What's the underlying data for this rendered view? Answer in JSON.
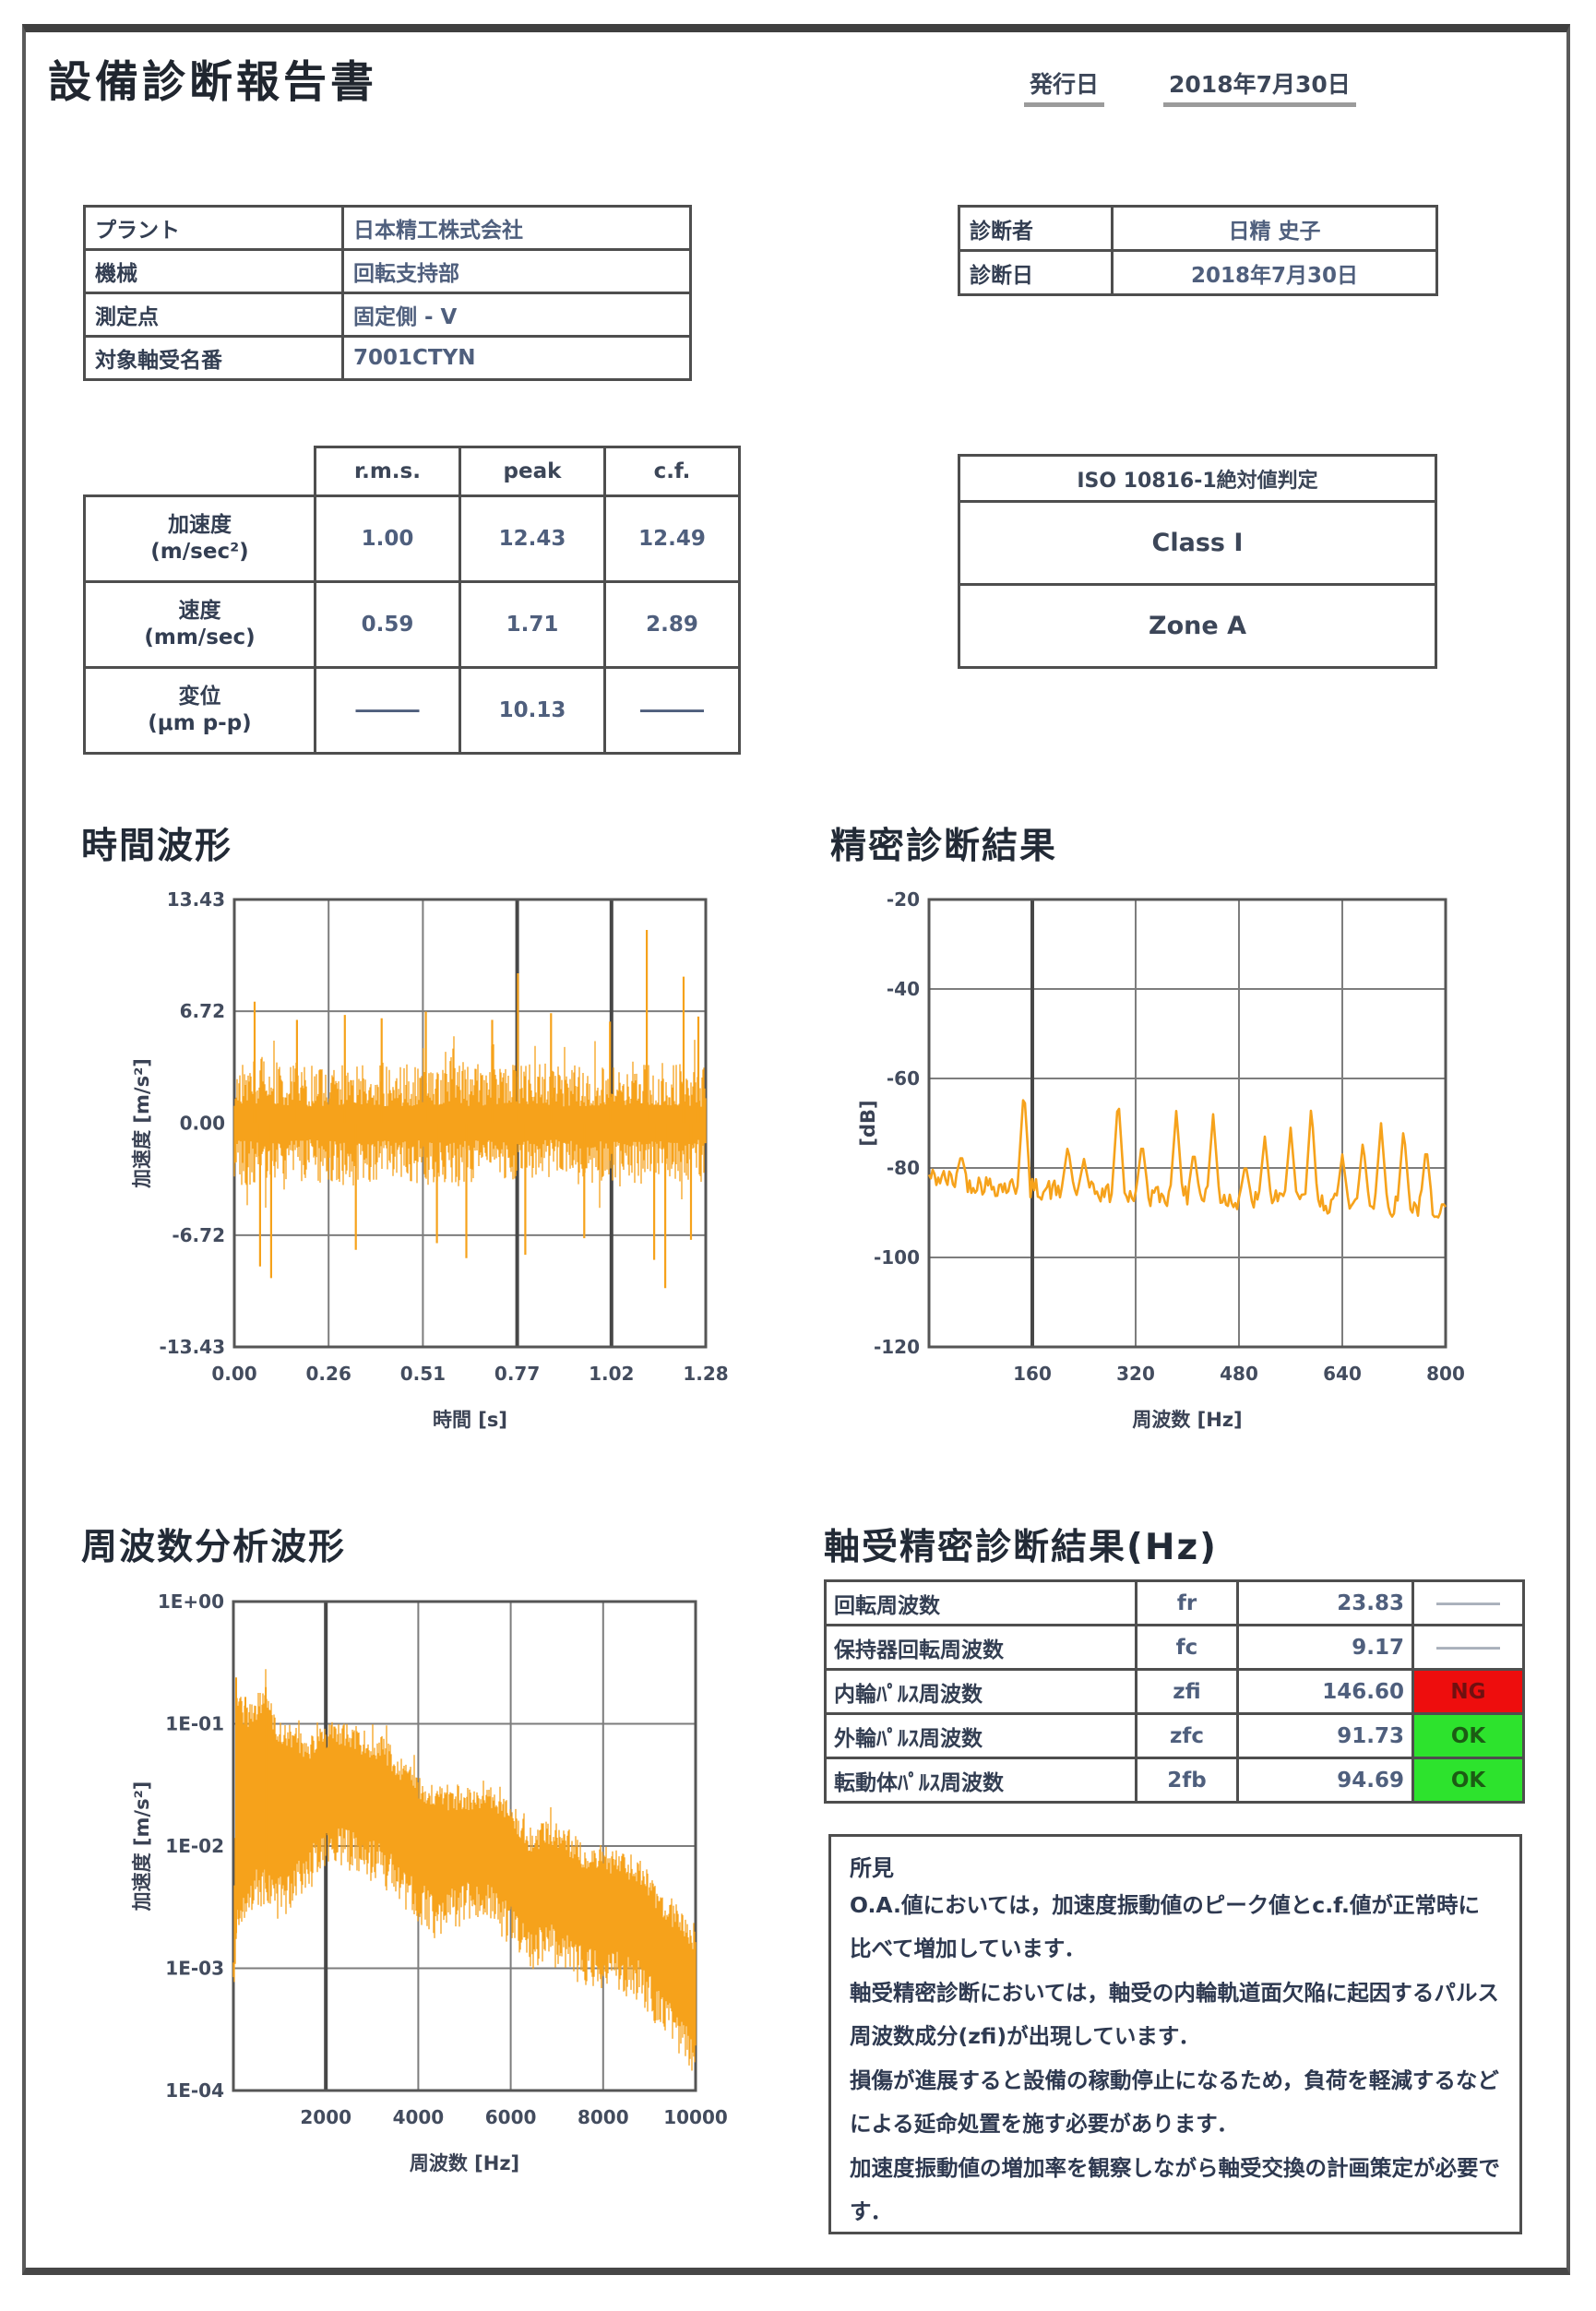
{
  "page": {
    "title": "設備診断報告書",
    "issue": {
      "label": "発行日",
      "date": "2018年7月30日"
    }
  },
  "info_left": {
    "rows": [
      {
        "label": "プラント",
        "value": "日本精工株式会社"
      },
      {
        "label": "機械",
        "value": "回転支持部"
      },
      {
        "label": "測定点",
        "value": "固定側 - V"
      },
      {
        "label": "対象軸受名番",
        "value": "7001CTYN"
      }
    ]
  },
  "info_right": {
    "rows": [
      {
        "label": "診断者",
        "value": "日精 史子"
      },
      {
        "label": "診断日",
        "value": "2018年7月30日"
      }
    ]
  },
  "measurement_table": {
    "headers": {
      "rms": "r.m.s.",
      "peak": "peak",
      "cf": "c.f."
    },
    "rows": [
      {
        "label": "加速度",
        "unit": "(m/sec²)",
        "rms": "1.00",
        "peak": "12.43",
        "cf": "12.49"
      },
      {
        "label": "速度",
        "unit": "(mm/sec)",
        "rms": "0.59",
        "peak": "1.71",
        "cf": "2.89"
      },
      {
        "label": "変位",
        "unit": "(μm p-p)",
        "rms": "―――",
        "peak": "10.13",
        "cf": "―――"
      }
    ]
  },
  "iso_table": {
    "header": "ISO 10816-1絶対値判定",
    "class_value": "Class Ⅰ",
    "zone_value": "Zone A"
  },
  "section_titles": {
    "time_waveform": "時間波形",
    "precision_result": "精密診断結果",
    "frequency_waveform": "周波数分析波形",
    "bearing_result": "軸受精密診断結果(Hz)"
  },
  "bearing_table": {
    "rows": [
      {
        "label": "回転周波数",
        "symbol": "fr",
        "value": "23.83",
        "status": "―――",
        "status_type": "none"
      },
      {
        "label": "保持器回転周波数",
        "symbol": "fc",
        "value": "9.17",
        "status": "―――",
        "status_type": "none"
      },
      {
        "label": "内輪ﾊﾟﾙｽ周波数",
        "symbol": "zfi",
        "value": "146.60",
        "status": "NG",
        "status_type": "ng"
      },
      {
        "label": "外輪ﾊﾟﾙｽ周波数",
        "symbol": "zfc",
        "value": "91.73",
        "status": "OK",
        "status_type": "ok"
      },
      {
        "label": "転動体ﾊﾟﾙｽ周波数",
        "symbol": "2fb",
        "value": "94.69",
        "status": "OK",
        "status_type": "ok"
      }
    ]
  },
  "findings": {
    "title": "所見",
    "lines": [
      "O.A.値においては，加速度振動値のピーク値とc.f.値が正常時に比べて増加しています．",
      "軸受精密診断においては，軸受の内輪軌道面欠陥に起因するパルス周波数成分(zfi)が出現しています．",
      "損傷が進展すると設備の稼動停止になるため，負荷を軽減するなどによる延命処置を施す必要があります．",
      "加速度振動値の増加率を観察しながら軸受交換の計画策定が必要です．"
    ]
  },
  "colors": {
    "waveform_orange": "#F6A21B",
    "ng_red": "#ee0d0d",
    "ok_green": "#2de32d",
    "grid_gray": "#7d7d7d"
  },
  "chart_data": [
    {
      "type": "line",
      "id": "time",
      "title": "時間波形",
      "xlabel": "時間 [s]",
      "ylabel": "加速度 [m/s²]",
      "x_range": [
        0,
        1.28
      ],
      "y_range": [
        -13.43,
        13.43
      ],
      "x_ticks": [
        {
          "v": 0,
          "label": "0.00"
        },
        {
          "v": 0.256,
          "label": "0.26"
        },
        {
          "v": 0.512,
          "label": "0.51"
        },
        {
          "v": 0.768,
          "label": "0.77"
        },
        {
          "v": 1.024,
          "label": "1.02"
        },
        {
          "v": 1.28,
          "label": "1.28"
        }
      ],
      "x_strong": [
        0.768,
        1.024
      ],
      "y_ticks": [
        {
          "v": 13.43,
          "label": "13.43"
        },
        {
          "v": 6.72,
          "label": "6.72"
        },
        {
          "v": 0,
          "label": "0.00"
        },
        {
          "v": -6.72,
          "label": "-6.72"
        },
        {
          "v": -13.43,
          "label": "-13.43"
        }
      ],
      "color": "#F6A21B",
      "rms": 1.0,
      "peak": 12.43,
      "envelope": [
        [
          0,
          3.6
        ],
        [
          0.1,
          4.2
        ],
        [
          0.2,
          3.4
        ],
        [
          0.3,
          4.0
        ],
        [
          0.45,
          3.5
        ],
        [
          0.55,
          3.9
        ],
        [
          0.65,
          3.6
        ],
        [
          0.75,
          3.8
        ],
        [
          0.9,
          3.5
        ],
        [
          1.0,
          3.8
        ],
        [
          1.1,
          4.0
        ],
        [
          1.2,
          3.7
        ],
        [
          1.28,
          3.5
        ]
      ],
      "spikes": [
        [
          0.055,
          7.3
        ],
        [
          0.07,
          -8.6
        ],
        [
          0.1,
          -9.3
        ],
        [
          0.17,
          6.2
        ],
        [
          0.3,
          6.5
        ],
        [
          0.33,
          -7.6
        ],
        [
          0.4,
          6.3
        ],
        [
          0.52,
          6.7
        ],
        [
          0.55,
          -7.2
        ],
        [
          0.63,
          -8.1
        ],
        [
          0.7,
          6.2
        ],
        [
          0.77,
          9.0
        ],
        [
          0.79,
          -7.9
        ],
        [
          0.86,
          6.6
        ],
        [
          0.95,
          -6.9
        ],
        [
          1.02,
          6.1
        ],
        [
          1.12,
          11.6
        ],
        [
          1.14,
          -8.2
        ],
        [
          1.17,
          -9.9
        ],
        [
          1.22,
          8.8
        ],
        [
          1.24,
          -7.0
        ],
        [
          1.26,
          6.4
        ]
      ]
    },
    {
      "type": "line",
      "id": "spectrum",
      "title": "精密診断結果",
      "xlabel": "周波数 [Hz]",
      "ylabel": "[dB]",
      "x_range": [
        0,
        800
      ],
      "y_range": [
        -120,
        -20
      ],
      "x_ticks": [
        {
          "v": 160,
          "label": "160"
        },
        {
          "v": 320,
          "label": "320"
        },
        {
          "v": 480,
          "label": "480"
        },
        {
          "v": 640,
          "label": "640"
        },
        {
          "v": 800,
          "label": "800"
        }
      ],
      "x_strong": [
        160
      ],
      "y_ticks": [
        {
          "v": -20,
          "label": "-20"
        },
        {
          "v": -40,
          "label": "-40"
        },
        {
          "v": -60,
          "label": "-60"
        },
        {
          "v": -80,
          "label": "-80"
        },
        {
          "v": -100,
          "label": "-100"
        },
        {
          "v": -120,
          "label": "-120"
        }
      ],
      "color": "#F6A21B",
      "noise": 2.4,
      "base": [
        [
          0,
          -82
        ],
        [
          100,
          -84
        ],
        [
          200,
          -85
        ],
        [
          320,
          -86
        ],
        [
          480,
          -87
        ],
        [
          640,
          -88
        ],
        [
          800,
          -89
        ]
      ],
      "peaks": [
        [
          50,
          -77
        ],
        [
          147,
          -62
        ],
        [
          215,
          -75
        ],
        [
          240,
          -78
        ],
        [
          293,
          -64
        ],
        [
          330,
          -74
        ],
        [
          383,
          -67
        ],
        [
          410,
          -76
        ],
        [
          440,
          -68
        ],
        [
          490,
          -79
        ],
        [
          520,
          -73
        ],
        [
          560,
          -71
        ],
        [
          592,
          -66
        ],
        [
          640,
          -77
        ],
        [
          672,
          -74
        ],
        [
          700,
          -70
        ],
        [
          735,
          -71
        ],
        [
          770,
          -75
        ]
      ]
    },
    {
      "type": "band",
      "id": "fft",
      "title": "周波数分析波形",
      "xlabel": "周波数 [Hz]",
      "ylabel": "加速度 [m/s²]",
      "x_range": [
        0,
        10000
      ],
      "y_range_log": [
        -4,
        0
      ],
      "x_ticks": [
        {
          "v": 2000,
          "label": "2000"
        },
        {
          "v": 4000,
          "label": "4000"
        },
        {
          "v": 6000,
          "label": "6000"
        },
        {
          "v": 8000,
          "label": "8000"
        },
        {
          "v": 10000,
          "label": "10000"
        }
      ],
      "x_strong": [
        2000
      ],
      "y_ticks": [
        {
          "v": 0,
          "label": "1E+00"
        },
        {
          "v": -1,
          "label": "1E-01"
        },
        {
          "v": -2,
          "label": "1E-02"
        },
        {
          "v": -3,
          "label": "1E-03"
        },
        {
          "v": -4,
          "label": "1E-04"
        }
      ],
      "color": "#F6A21B",
      "upper": [
        [
          0,
          -2.9
        ],
        [
          80,
          -0.75
        ],
        [
          200,
          -0.95
        ],
        [
          400,
          -0.9
        ],
        [
          700,
          -0.78
        ],
        [
          900,
          -1.05
        ],
        [
          1300,
          -1.1
        ],
        [
          1600,
          -1.2
        ],
        [
          2000,
          -1.1
        ],
        [
          2400,
          -1.08
        ],
        [
          2800,
          -1.15
        ],
        [
          3200,
          -1.2
        ],
        [
          3600,
          -1.35
        ],
        [
          4000,
          -1.5
        ],
        [
          4400,
          -1.65
        ],
        [
          4800,
          -1.6
        ],
        [
          5200,
          -1.6
        ],
        [
          5600,
          -1.62
        ],
        [
          6000,
          -1.75
        ],
        [
          6400,
          -1.95
        ],
        [
          6800,
          -1.9
        ],
        [
          7200,
          -1.95
        ],
        [
          7600,
          -2.1
        ],
        [
          8000,
          -2.1
        ],
        [
          8400,
          -2.15
        ],
        [
          8800,
          -2.2
        ],
        [
          9200,
          -2.45
        ],
        [
          9600,
          -2.6
        ],
        [
          10000,
          -2.8
        ]
      ],
      "lower": [
        [
          0,
          -3.05
        ],
        [
          80,
          -2.6
        ],
        [
          200,
          -2.5
        ],
        [
          400,
          -2.4
        ],
        [
          700,
          -2.3
        ],
        [
          900,
          -2.45
        ],
        [
          1300,
          -2.35
        ],
        [
          1600,
          -2.2
        ],
        [
          2000,
          -2.05
        ],
        [
          2400,
          -2.0
        ],
        [
          2800,
          -2.1
        ],
        [
          3200,
          -2.15
        ],
        [
          3600,
          -2.3
        ],
        [
          4000,
          -2.45
        ],
        [
          4400,
          -2.6
        ],
        [
          4800,
          -2.5
        ],
        [
          5200,
          -2.45
        ],
        [
          5600,
          -2.5
        ],
        [
          6000,
          -2.65
        ],
        [
          6400,
          -2.85
        ],
        [
          6800,
          -2.8
        ],
        [
          7200,
          -2.85
        ],
        [
          7600,
          -3.0
        ],
        [
          8000,
          -3.0
        ],
        [
          8400,
          -3.05
        ],
        [
          8800,
          -3.1
        ],
        [
          9200,
          -3.35
        ],
        [
          9600,
          -3.5
        ],
        [
          10000,
          -3.75
        ]
      ],
      "spikes": [
        [
          60,
          -0.62
        ],
        [
          260,
          -0.78
        ],
        [
          700,
          -0.7
        ]
      ]
    }
  ]
}
